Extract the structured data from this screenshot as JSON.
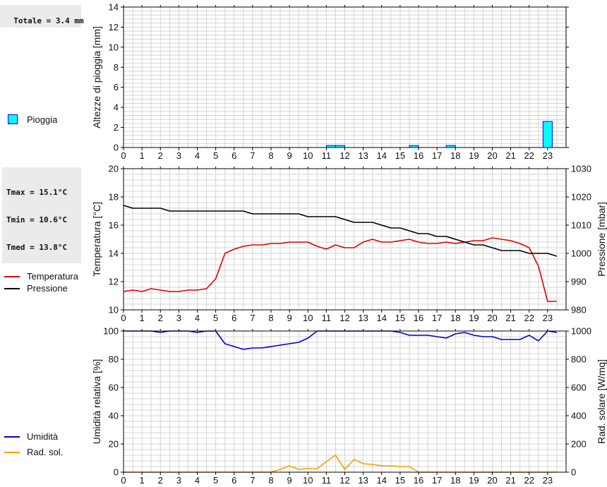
{
  "stats": {
    "rain_total": "Totale = 3.4 mm",
    "tmax": "Tmax = 15.1°C",
    "tmin": "Tmin = 10.6°C",
    "tmed": "Tmed = 13.8°C"
  },
  "legend": {
    "rain": "Pioggia",
    "temperature": "Temperatura",
    "pressure": "Pressione",
    "humidity": "Umidità",
    "solar": "Rad. sol."
  },
  "colors": {
    "rain_fill": "#00ffff",
    "rain_border": "#0000ff",
    "temperature": "#dd0000",
    "pressure": "#000000",
    "humidity": "#0000cc",
    "solar": "#f0a000",
    "grid": "#d4d4d4"
  },
  "chart_data": [
    {
      "type": "bar",
      "title": "",
      "xlabel": "",
      "ylabel": "Altezze di pioggia [mm]",
      "xlim": [
        0,
        24
      ],
      "ylim": [
        0,
        14
      ],
      "xticks": [
        0,
        1,
        2,
        3,
        4,
        5,
        6,
        7,
        8,
        9,
        10,
        11,
        12,
        13,
        14,
        15,
        16,
        17,
        18,
        19,
        20,
        21,
        22,
        23
      ],
      "yticks": [
        0,
        2,
        4,
        6,
        8,
        10,
        12,
        14
      ],
      "series": [
        {
          "name": "Pioggia",
          "bars": [
            {
              "x0": 11.0,
              "x1": 11.5,
              "value": 0.2
            },
            {
              "x0": 11.5,
              "x1": 12.0,
              "value": 0.2
            },
            {
              "x0": 15.5,
              "x1": 16.0,
              "value": 0.2
            },
            {
              "x0": 17.5,
              "x1": 18.0,
              "value": 0.2
            },
            {
              "x0": 22.75,
              "x1": 23.25,
              "value": 2.6
            }
          ]
        }
      ]
    },
    {
      "type": "line",
      "title": "",
      "xlabel": "",
      "ylabel": "Temperatura [°C]",
      "y2label": "Pressione [mbar]",
      "xlim": [
        0,
        24
      ],
      "ylim": [
        10,
        20
      ],
      "y2lim": [
        980,
        1030
      ],
      "xticks": [
        0,
        1,
        2,
        3,
        4,
        5,
        6,
        7,
        8,
        9,
        10,
        11,
        12,
        13,
        14,
        15,
        16,
        17,
        18,
        19,
        20,
        21,
        22,
        23
      ],
      "yticks": [
        10,
        12,
        14,
        16,
        18,
        20
      ],
      "y2ticks": [
        980,
        990,
        1000,
        1010,
        1020,
        1030
      ],
      "series": [
        {
          "name": "Temperatura",
          "axis": "left",
          "x": [
            0,
            0.5,
            1,
            1.5,
            2,
            2.5,
            3,
            3.5,
            4,
            4.5,
            5,
            5.5,
            6,
            6.5,
            7,
            7.5,
            8,
            8.5,
            9,
            9.5,
            10,
            10.5,
            11,
            11.5,
            12,
            12.5,
            13,
            13.5,
            14,
            14.5,
            15,
            15.5,
            16,
            16.5,
            17,
            17.5,
            18,
            18.5,
            19,
            19.5,
            20,
            20.5,
            21,
            21.5,
            22,
            22.5,
            23,
            23.5
          ],
          "values": [
            11.3,
            11.4,
            11.3,
            11.5,
            11.4,
            11.3,
            11.3,
            11.4,
            11.4,
            11.5,
            12.2,
            14.0,
            14.3,
            14.5,
            14.6,
            14.6,
            14.7,
            14.7,
            14.8,
            14.8,
            14.8,
            14.5,
            14.3,
            14.6,
            14.4,
            14.4,
            14.8,
            15.0,
            14.8,
            14.8,
            14.9,
            15.0,
            14.8,
            14.7,
            14.7,
            14.8,
            14.7,
            14.8,
            14.9,
            14.9,
            15.1,
            15.0,
            14.9,
            14.7,
            14.4,
            13.1,
            10.6,
            10.6
          ]
        },
        {
          "name": "Pressione",
          "axis": "right",
          "x": [
            0,
            0.5,
            1,
            1.5,
            2,
            2.5,
            3,
            3.5,
            4,
            4.5,
            5,
            5.5,
            6,
            6.5,
            7,
            7.5,
            8,
            8.5,
            9,
            9.5,
            10,
            10.5,
            11,
            11.5,
            12,
            12.5,
            13,
            13.5,
            14,
            14.5,
            15,
            15.5,
            16,
            16.5,
            17,
            17.5,
            18,
            18.5,
            19,
            19.5,
            20,
            20.5,
            21,
            21.5,
            22,
            22.5,
            23,
            23.5
          ],
          "values": [
            1017.0,
            1016.0,
            1016.0,
            1016.0,
            1016.0,
            1015.0,
            1015.0,
            1015.0,
            1015.0,
            1015.0,
            1015.0,
            1015.0,
            1015.0,
            1015.0,
            1014.0,
            1014.0,
            1014.0,
            1014.0,
            1014.0,
            1014.0,
            1013.0,
            1013.0,
            1013.0,
            1013.0,
            1012.0,
            1011.0,
            1011.0,
            1011.0,
            1010.0,
            1009.0,
            1009.0,
            1008.0,
            1007.0,
            1007.0,
            1006.0,
            1006.0,
            1005.0,
            1004.0,
            1003.0,
            1003.0,
            1002.0,
            1001.0,
            1001.0,
            1001.0,
            1000.0,
            1000.0,
            1000.0,
            999.0
          ]
        }
      ]
    },
    {
      "type": "line",
      "title": "",
      "xlabel": "",
      "ylabel": "Umidità relativa [%]",
      "y2label": "Rad. solare [W/mq]",
      "xlim": [
        0,
        24
      ],
      "ylim": [
        0,
        100
      ],
      "y2lim": [
        0,
        1000
      ],
      "xticks": [
        0,
        1,
        2,
        3,
        4,
        5,
        6,
        7,
        8,
        9,
        10,
        11,
        12,
        13,
        14,
        15,
        16,
        17,
        18,
        19,
        20,
        21,
        22,
        23
      ],
      "yticks": [
        0,
        20,
        40,
        60,
        80,
        100
      ],
      "y2ticks": [
        0,
        200,
        400,
        600,
        800,
        1000
      ],
      "series": [
        {
          "name": "Umidità",
          "axis": "left",
          "x": [
            0,
            0.5,
            1,
            1.5,
            2,
            2.5,
            3,
            3.5,
            4,
            4.5,
            5,
            5.5,
            6,
            6.5,
            7,
            7.5,
            8,
            8.5,
            9,
            9.5,
            10,
            10.5,
            11,
            11.5,
            12,
            12.5,
            13,
            13.5,
            14,
            14.5,
            15,
            15.5,
            16,
            16.5,
            17,
            17.5,
            18,
            18.5,
            19,
            19.5,
            20,
            20.5,
            21,
            21.5,
            22,
            22.5,
            23,
            23.5
          ],
          "values": [
            100,
            100,
            100,
            100,
            99,
            100,
            100,
            100,
            99,
            100,
            100,
            91,
            89,
            87,
            88,
            88,
            89,
            90,
            91,
            92,
            95,
            100,
            100,
            100,
            100,
            100,
            100,
            100,
            100,
            100,
            99,
            97,
            97,
            97,
            96,
            95,
            98,
            99,
            97,
            96,
            96,
            94,
            94,
            94,
            97,
            93,
            100,
            99
          ]
        },
        {
          "name": "Rad. sol.",
          "axis": "right",
          "x": [
            0,
            0.5,
            1,
            1.5,
            2,
            2.5,
            3,
            3.5,
            4,
            4.5,
            5,
            5.5,
            6,
            6.5,
            7,
            7.5,
            8,
            8.5,
            9,
            9.5,
            10,
            10.5,
            11,
            11.5,
            12,
            12.5,
            13,
            13.5,
            14,
            14.5,
            15,
            15.5,
            16,
            16.5,
            17,
            17.5,
            18,
            18.5,
            19,
            19.5,
            20,
            20.5,
            21,
            21.5,
            22,
            22.5,
            23,
            23.5
          ],
          "values": [
            0,
            0,
            0,
            0,
            0,
            0,
            0,
            0,
            0,
            0,
            0,
            0,
            0,
            0,
            0,
            0,
            0,
            20,
            45,
            20,
            25,
            25,
            75,
            120,
            20,
            90,
            60,
            55,
            45,
            45,
            40,
            40,
            0,
            0,
            0,
            0,
            0,
            0,
            0,
            0,
            0,
            0,
            0,
            0,
            0,
            0,
            0,
            0
          ]
        }
      ]
    }
  ]
}
